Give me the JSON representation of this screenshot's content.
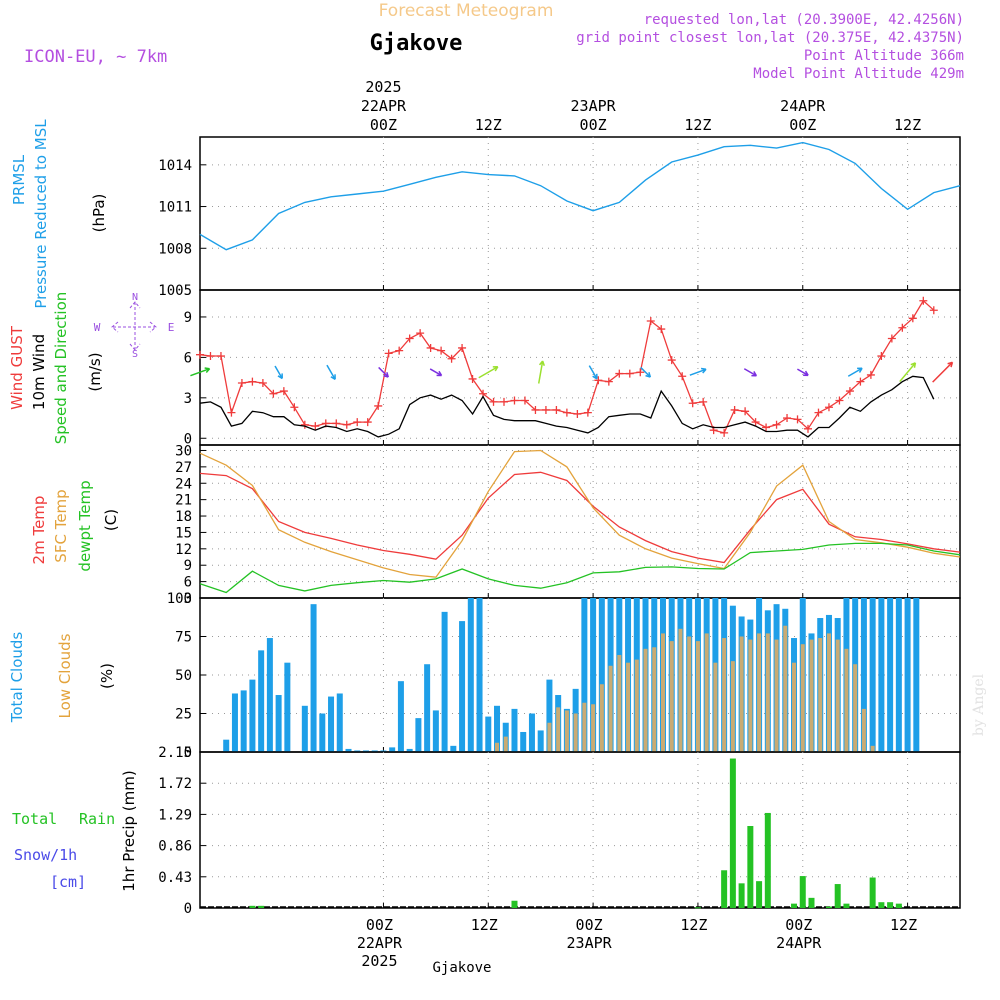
{
  "header": {
    "product_title": "Forecast Meteogram",
    "location": "Gjakove",
    "model": "ICON-EU, ~ 7km",
    "requested": "requested lon,lat (20.3900E, 42.4256N)",
    "grid_point": "grid point closest lon,lat (20.375E, 42.4375N)",
    "point_altitude": "Point Altitude 366m",
    "model_altitude": "Model Point Altitude 429m",
    "footer_location": "Gjakove",
    "watermark": "by Angel"
  },
  "time_axis": {
    "year_label": "2025",
    "start": "2025-04-21T03:00Z",
    "end": "2025-04-24T18:00Z",
    "ticks": [
      {
        "t": "2025-04-22T00:00Z",
        "top": "00Z",
        "date": "22APR",
        "year": "2025"
      },
      {
        "t": "2025-04-22T12:00Z",
        "top": "12Z",
        "date": "",
        "year": ""
      },
      {
        "t": "2025-04-23T00:00Z",
        "top": "00Z",
        "date": "23APR",
        "year": ""
      },
      {
        "t": "2025-04-23T12:00Z",
        "top": "12Z",
        "date": "",
        "year": ""
      },
      {
        "t": "2025-04-24T00:00Z",
        "top": "00Z",
        "date": "24APR",
        "year": ""
      },
      {
        "t": "2025-04-24T12:00Z",
        "top": "12Z",
        "date": "",
        "year": ""
      }
    ]
  },
  "colors": {
    "pressure": "#1e9fe8",
    "gust": "#ef3b3b",
    "wind10m": "#000000",
    "temp2m": "#ef3b3b",
    "sfc_temp": "#e3a33c",
    "dewpoint": "#24c224",
    "total_clouds": "#1e9fe8",
    "low_clouds": "#c9ab73",
    "rain": "#24c224",
    "snow": "#4a4ae8",
    "title_orange": "#f5c98a",
    "meta_purple": "#b44fe0",
    "purple": "#9a4fe0"
  },
  "panels": {
    "pressure": {
      "labels": [
        "PRMSL",
        "Pressure Reduced to MSL"
      ],
      "unit": "(hPa)",
      "ticks": [
        "1014",
        "1011",
        "1008",
        "1005"
      ]
    },
    "wind": {
      "labels": [
        "Wind GUST",
        "10m Wind",
        "Speed and Direction"
      ],
      "unit": "(m/s)",
      "compass": "N S W E",
      "ticks": [
        "9",
        "6",
        "3",
        "0"
      ]
    },
    "temperature": {
      "labels": [
        "2m Temp",
        "SFC Temp",
        "dewpt Temp"
      ],
      "unit": "(C)",
      "ticks": [
        "30",
        "27",
        "24",
        "21",
        "18",
        "15",
        "12",
        "9",
        "6",
        "3"
      ]
    },
    "clouds": {
      "labels": [
        "Total Clouds",
        "Low Clouds"
      ],
      "unit": "(%)",
      "ticks": [
        "100",
        "75",
        "50",
        "25",
        "0"
      ]
    },
    "precip": {
      "labels": [
        "Total",
        "Rain",
        "Snow/1h",
        "[cm]"
      ],
      "unit": "1hr Precip (mm)",
      "ticks": [
        "2.15",
        "1.72",
        "1.29",
        "0.86",
        "0.43",
        "0"
      ]
    }
  },
  "chart_data": [
    {
      "type": "line",
      "title": "PRMSL Pressure Reduced to MSL",
      "ylabel": "(hPa)",
      "ylim": [
        1005,
        1016
      ],
      "grid": true,
      "series": [
        {
          "name": "PRMSL",
          "color": "#1e9fe8",
          "points": [
            [
              "2025-04-21T03:00Z",
              1009.0
            ],
            [
              "2025-04-21T06:00Z",
              1007.9
            ],
            [
              "2025-04-21T09:00Z",
              1008.6
            ],
            [
              "2025-04-21T12:00Z",
              1010.5
            ],
            [
              "2025-04-21T15:00Z",
              1011.3
            ],
            [
              "2025-04-21T18:00Z",
              1011.7
            ],
            [
              "2025-04-21T21:00Z",
              1011.9
            ],
            [
              "2025-04-22T00:00Z",
              1012.1
            ],
            [
              "2025-04-22T03:00Z",
              1012.6
            ],
            [
              "2025-04-22T06:00Z",
              1013.1
            ],
            [
              "2025-04-22T09:00Z",
              1013.5
            ],
            [
              "2025-04-22T12:00Z",
              1013.3
            ],
            [
              "2025-04-22T15:00Z",
              1013.2
            ],
            [
              "2025-04-22T18:00Z",
              1012.5
            ],
            [
              "2025-04-22T21:00Z",
              1011.4
            ],
            [
              "2025-04-23T00:00Z",
              1010.7
            ],
            [
              "2025-04-23T03:00Z",
              1011.3
            ],
            [
              "2025-04-23T06:00Z",
              1012.9
            ],
            [
              "2025-04-23T09:00Z",
              1014.2
            ],
            [
              "2025-04-23T12:00Z",
              1014.7
            ],
            [
              "2025-04-23T15:00Z",
              1015.3
            ],
            [
              "2025-04-23T18:00Z",
              1015.4
            ],
            [
              "2025-04-23T21:00Z",
              1015.2
            ],
            [
              "2025-04-24T00:00Z",
              1015.6
            ],
            [
              "2025-04-24T03:00Z",
              1015.1
            ],
            [
              "2025-04-24T06:00Z",
              1014.1
            ],
            [
              "2025-04-24T09:00Z",
              1012.3
            ],
            [
              "2025-04-24T12:00Z",
              1010.8
            ],
            [
              "2025-04-24T15:00Z",
              1012.0
            ],
            [
              "2025-04-24T18:00Z",
              1012.5
            ]
          ]
        },
        {
          "name": "PRMSL-b",
          "color": "#1e9fe8",
          "points": []
        }
      ]
    },
    {
      "type": "line",
      "title": "Wind GUST / 10m Wind",
      "ylabel": "(m/s)",
      "ylim": [
        -0.5,
        11
      ],
      "grid": true,
      "series": [
        {
          "name": "Wind GUST",
          "color": "#ef3b3b",
          "marker": "+",
          "values": [
            6.2,
            6.1,
            6.1,
            1.9,
            4.1,
            4.2,
            4.1,
            3.3,
            3.5,
            2.3,
            1.0,
            0.9,
            1.1,
            1.1,
            1.0,
            1.2,
            1.2,
            2.4,
            6.3,
            6.5,
            7.4,
            7.8,
            6.7,
            6.5,
            5.9,
            6.7,
            4.4,
            3.3,
            2.7,
            2.7,
            2.8,
            2.8,
            2.1,
            2.1,
            2.1,
            1.9,
            1.8,
            1.9,
            4.3,
            4.2,
            4.8,
            4.8,
            4.9,
            8.7,
            8.1,
            5.8,
            4.6,
            2.6,
            2.7,
            0.6,
            0.4,
            2.1,
            2.0,
            1.2,
            0.8,
            1.0,
            1.5,
            1.4,
            0.7,
            1.9,
            2.3,
            2.8,
            3.5,
            4.2,
            4.7,
            6.1,
            7.4,
            8.2,
            8.9,
            10.2,
            9.5
          ]
        },
        {
          "name": "10m Wind",
          "color": "#000000",
          "values": [
            2.6,
            2.7,
            2.3,
            0.9,
            1.1,
            2.0,
            1.9,
            1.6,
            1.6,
            1.0,
            0.9,
            0.6,
            0.9,
            0.8,
            0.5,
            0.7,
            0.5,
            0.1,
            0.3,
            0.7,
            2.5,
            3.0,
            3.2,
            2.9,
            3.2,
            2.8,
            1.8,
            3.1,
            1.7,
            1.4,
            1.3,
            1.3,
            1.3,
            1.1,
            0.9,
            0.8,
            0.6,
            0.4,
            0.8,
            1.6,
            1.7,
            1.8,
            1.8,
            1.5,
            3.5,
            2.4,
            1.1,
            0.7,
            1.0,
            0.8,
            0.8,
            1.0,
            1.2,
            0.9,
            0.5,
            0.5,
            0.6,
            0.6,
            0.1,
            0.8,
            0.8,
            1.5,
            2.3,
            2.0,
            2.7,
            3.2,
            3.6,
            4.2,
            4.6,
            4.5,
            2.9
          ]
        }
      ],
      "t_start": "2025-04-21T03:00Z",
      "t_step_hours": 1.2,
      "wind_arrows": [
        {
          "t": "2025-04-21T03:00Z",
          "dir_deg": 250,
          "speed": 2.6,
          "color": "#24c224"
        },
        {
          "t": "2025-04-21T12:00Z",
          "dir_deg": 330,
          "speed": 1.1,
          "color": "#1e9fe8"
        },
        {
          "t": "2025-04-21T18:00Z",
          "dir_deg": 330,
          "speed": 1.6,
          "color": "#1e9fe8"
        },
        {
          "t": "2025-04-22T00:00Z",
          "dir_deg": 315,
          "speed": 0.9,
          "color": "#7b2fe0"
        },
        {
          "t": "2025-04-22T06:00Z",
          "dir_deg": 300,
          "speed": 0.8,
          "color": "#7b2fe0"
        },
        {
          "t": "2025-04-22T12:00Z",
          "dir_deg": 240,
          "speed": 3.0,
          "color": "#9be02f"
        },
        {
          "t": "2025-04-22T18:00Z",
          "dir_deg": 190,
          "speed": 3.2,
          "color": "#9be02f"
        },
        {
          "t": "2025-04-23T00:00Z",
          "dir_deg": 330,
          "speed": 1.3,
          "color": "#1e9fe8"
        },
        {
          "t": "2025-04-23T06:00Z",
          "dir_deg": 315,
          "speed": 0.9,
          "color": "#1e9fe8"
        },
        {
          "t": "2025-04-23T12:00Z",
          "dir_deg": 250,
          "speed": 1.8,
          "color": "#1e9fe8"
        },
        {
          "t": "2025-04-23T18:00Z",
          "dir_deg": 300,
          "speed": 1.0,
          "color": "#7b2fe0"
        },
        {
          "t": "2025-04-24T00:00Z",
          "dir_deg": 300,
          "speed": 0.6,
          "color": "#7b2fe0"
        },
        {
          "t": "2025-04-24T06:00Z",
          "dir_deg": 240,
          "speed": 1.5,
          "color": "#1e9fe8"
        },
        {
          "t": "2025-04-24T12:00Z",
          "dir_deg": 220,
          "speed": 3.6,
          "color": "#9be02f"
        },
        {
          "t": "2025-04-24T16:00Z",
          "dir_deg": 225,
          "speed": 4.5,
          "color": "#ef3b3b"
        }
      ]
    },
    {
      "type": "line",
      "title": "2m Temp / SFC Temp / dewpt Temp",
      "ylabel": "(C)",
      "ylim": [
        3,
        31
      ],
      "grid": true,
      "series": [
        {
          "name": "2m Temp",
          "color": "#ef3b3b",
          "points": [
            [
              "2025-04-21T03:00Z",
              25.8
            ],
            [
              "2025-04-21T06:00Z",
              25.4
            ],
            [
              "2025-04-21T09:00Z",
              23.0
            ],
            [
              "2025-04-21T12:00Z",
              17.0
            ],
            [
              "2025-04-21T15:00Z",
              15.0
            ],
            [
              "2025-04-21T18:00Z",
              13.9
            ],
            [
              "2025-04-21T21:00Z",
              12.7
            ],
            [
              "2025-04-22T00:00Z",
              11.7
            ],
            [
              "2025-04-22T03:00Z",
              11.0
            ],
            [
              "2025-04-22T06:00Z",
              10.1
            ],
            [
              "2025-04-22T09:00Z",
              14.5
            ],
            [
              "2025-04-22T12:00Z",
              21.3
            ],
            [
              "2025-04-22T15:00Z",
              25.6
            ],
            [
              "2025-04-22T18:00Z",
              26.0
            ],
            [
              "2025-04-22T21:00Z",
              24.5
            ],
            [
              "2025-04-23T00:00Z",
              19.8
            ],
            [
              "2025-04-23T03:00Z",
              16.0
            ],
            [
              "2025-04-23T06:00Z",
              13.5
            ],
            [
              "2025-04-23T09:00Z",
              11.5
            ],
            [
              "2025-04-23T12:00Z",
              10.3
            ],
            [
              "2025-04-23T15:00Z",
              9.5
            ],
            [
              "2025-04-23T18:00Z",
              15.5
            ],
            [
              "2025-04-23T21:00Z",
              21.0
            ],
            [
              "2025-04-24T00:00Z",
              22.9
            ],
            [
              "2025-04-24T03:00Z",
              16.5
            ],
            [
              "2025-04-24T06:00Z",
              14.2
            ],
            [
              "2025-04-24T09:00Z",
              13.7
            ],
            [
              "2025-04-24T12:00Z",
              12.9
            ],
            [
              "2025-04-24T15:00Z",
              12.0
            ],
            [
              "2025-04-24T18:00Z",
              11.4
            ]
          ]
        }
      ]
    },
    {
      "type": "bar",
      "title": "Total Clouds / Low Clouds",
      "ylabel": "(%)",
      "ylim": [
        0,
        100
      ],
      "grid": true,
      "t_start": "2025-04-21T03:00Z",
      "t_step_hours": 1.0,
      "series": [
        {
          "name": "Total Clouds",
          "color": "#1e9fe8",
          "values": [
            0,
            0,
            0,
            8,
            38,
            40,
            47,
            66,
            74,
            37,
            58,
            0,
            30,
            96,
            25,
            36,
            38,
            2,
            1,
            1,
            1,
            1,
            3,
            46,
            2,
            22,
            57,
            27,
            91,
            4,
            85,
            100,
            100,
            23,
            30,
            19,
            28,
            13,
            25,
            14,
            47,
            37,
            28,
            41,
            100,
            100,
            100,
            100,
            100,
            100,
            100,
            100,
            100,
            100,
            100,
            100,
            100,
            100,
            100,
            100,
            100,
            95,
            88,
            86,
            100,
            92,
            96,
            93,
            74,
            100,
            77,
            87,
            89,
            87,
            100,
            100,
            100,
            100,
            100,
            100,
            100,
            100,
            100
          ]
        },
        {
          "name": "Low Clouds",
          "color": "#c9ab73",
          "values": [
            0,
            0,
            0,
            0,
            0,
            0,
            0,
            0,
            0,
            0,
            0,
            0,
            0,
            0,
            0,
            0,
            0,
            0,
            0,
            0,
            0,
            0,
            0,
            0,
            0,
            0,
            0,
            0,
            0,
            0,
            0,
            0,
            0,
            0,
            6,
            10,
            0,
            0,
            0,
            0,
            19,
            29,
            27,
            25,
            32,
            31,
            44,
            56,
            63,
            58,
            60,
            67,
            68,
            77,
            72,
            80,
            75,
            72,
            77,
            58,
            74,
            59,
            75,
            73,
            77,
            77,
            73,
            82,
            58,
            70,
            73,
            74,
            77,
            73,
            67,
            57,
            28,
            4,
            0,
            0,
            0,
            0,
            0
          ]
        }
      ]
    },
    {
      "type": "bar",
      "title": "1hr Precip (mm)",
      "ylabel": "1hr Precip (mm)",
      "ylim": [
        0,
        2.15
      ],
      "grid": true,
      "series": [
        {
          "name": "Rain",
          "color": "#24c224",
          "points": [
            [
              "2025-04-21T09:00Z",
              0.03
            ],
            [
              "2025-04-21T10:00Z",
              0.03
            ],
            [
              "2025-04-22T15:00Z",
              0.1
            ],
            [
              "2025-04-23T12:00Z",
              0.01
            ],
            [
              "2025-04-23T15:00Z",
              0.52
            ],
            [
              "2025-04-23T16:00Z",
              2.06
            ],
            [
              "2025-04-23T17:00Z",
              0.34
            ],
            [
              "2025-04-23T18:00Z",
              1.13
            ],
            [
              "2025-04-23T19:00Z",
              0.37
            ],
            [
              "2025-04-23T20:00Z",
              1.31
            ],
            [
              "2025-04-23T23:00Z",
              0.06
            ],
            [
              "2025-04-24T00:00Z",
              0.44
            ],
            [
              "2025-04-24T01:00Z",
              0.14
            ],
            [
              "2025-04-24T03:00Z",
              0.02
            ],
            [
              "2025-04-24T04:00Z",
              0.33
            ],
            [
              "2025-04-24T05:00Z",
              0.06
            ],
            [
              "2025-04-24T08:00Z",
              0.42
            ],
            [
              "2025-04-24T09:00Z",
              0.08
            ],
            [
              "2025-04-24T10:00Z",
              0.08
            ],
            [
              "2025-04-24T11:00Z",
              0.06
            ]
          ]
        }
      ]
    }
  ]
}
